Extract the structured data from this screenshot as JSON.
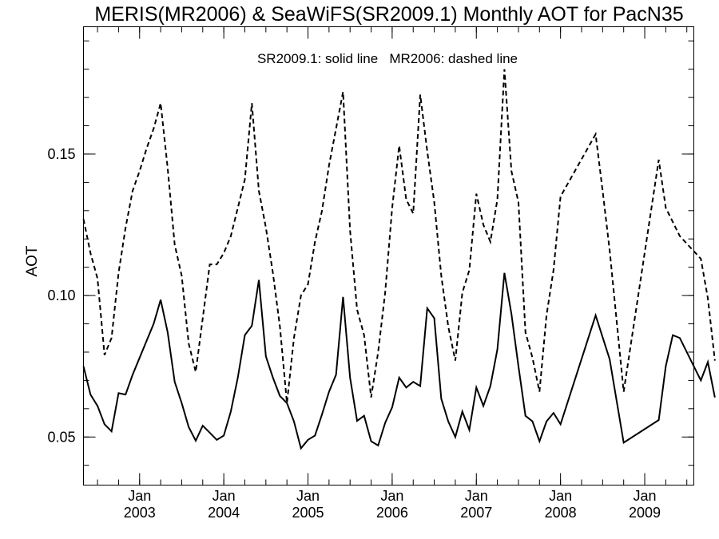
{
  "chart_data": {
    "type": "line",
    "title": "MERIS(MR2006) & SeaWiFS(SR2009.1) Monthly AOT for PacN35",
    "annotation": "SR2009.1: solid line   MR2006: dashed line",
    "xlabel": "",
    "ylabel": "AOT",
    "xlim": [
      "2002-05",
      "2009-08"
    ],
    "ylim": [
      0.033,
      0.195
    ],
    "y_ticks": [
      {
        "value": 0.05,
        "label": "0.05"
      },
      {
        "value": 0.1,
        "label": "0.10"
      },
      {
        "value": 0.15,
        "label": "0.15"
      }
    ],
    "x_ticks": [
      {
        "x": "2003-01",
        "month": "Jan",
        "year": "2003"
      },
      {
        "x": "2004-01",
        "month": "Jan",
        "year": "2004"
      },
      {
        "x": "2005-01",
        "month": "Jan",
        "year": "2005"
      },
      {
        "x": "2006-01",
        "month": "Jan",
        "year": "2006"
      },
      {
        "x": "2007-01",
        "month": "Jan",
        "year": "2007"
      },
      {
        "x": "2008-01",
        "month": "Jan",
        "year": "2008"
      },
      {
        "x": "2009-01",
        "month": "Jan",
        "year": "2009"
      }
    ],
    "grid": false,
    "series": [
      {
        "style": "solid",
        "points": [
          [
            "2002-05",
            0.075
          ],
          [
            "2002-06",
            0.065
          ],
          [
            "2002-07",
            0.061
          ],
          [
            "2002-08",
            0.0545
          ],
          [
            "2002-09",
            0.052
          ],
          [
            "2002-10",
            0.0655
          ],
          [
            "2002-11",
            0.065
          ],
          [
            "2002-12",
            0.072
          ],
          [
            "2003-01",
            0.078
          ],
          [
            "2003-02",
            0.084
          ],
          [
            "2003-03",
            0.09
          ],
          [
            "2003-04",
            0.0985
          ],
          [
            "2003-05",
            0.087
          ],
          [
            "2003-06",
            0.0695
          ],
          [
            "2003-07",
            0.062
          ],
          [
            "2003-08",
            0.0535
          ],
          [
            "2003-09",
            0.0487
          ],
          [
            "2003-10",
            0.054
          ],
          [
            "2003-11",
            0.0515
          ],
          [
            "2003-12",
            0.049
          ],
          [
            "2004-01",
            0.0505
          ],
          [
            "2004-02",
            0.059
          ],
          [
            "2004-03",
            0.071
          ],
          [
            "2004-04",
            0.086
          ],
          [
            "2004-05",
            0.0893
          ],
          [
            "2004-06",
            0.1055
          ],
          [
            "2004-07",
            0.0785
          ],
          [
            "2004-08",
            0.071
          ],
          [
            "2004-09",
            0.0645
          ],
          [
            "2004-10",
            0.062
          ],
          [
            "2004-11",
            0.0555
          ],
          [
            "2004-12",
            0.046
          ],
          [
            "2005-01",
            0.049
          ],
          [
            "2005-02",
            0.0505
          ],
          [
            "2005-03",
            0.058
          ],
          [
            "2005-04",
            0.066
          ],
          [
            "2005-05",
            0.072
          ],
          [
            "2005-06",
            0.0995
          ],
          [
            "2005-07",
            0.071
          ],
          [
            "2005-08",
            0.0557
          ],
          [
            "2005-09",
            0.0575
          ],
          [
            "2005-10",
            0.0485
          ],
          [
            "2005-11",
            0.047
          ],
          [
            "2005-12",
            0.055
          ],
          [
            "2006-01",
            0.0605
          ],
          [
            "2006-02",
            0.071
          ],
          [
            "2006-03",
            0.0675
          ],
          [
            "2006-04",
            0.0695
          ],
          [
            "2006-05",
            0.068
          ],
          [
            "2006-06",
            0.0955
          ],
          [
            "2006-07",
            0.092
          ],
          [
            "2006-08",
            0.0635
          ],
          [
            "2006-09",
            0.0555
          ],
          [
            "2006-10",
            0.05
          ],
          [
            "2006-11",
            0.059
          ],
          [
            "2006-12",
            0.0525
          ],
          [
            "2007-01",
            0.0675
          ],
          [
            "2007-02",
            0.061
          ],
          [
            "2007-03",
            0.068
          ],
          [
            "2007-04",
            0.081
          ],
          [
            "2007-05",
            0.108
          ],
          [
            "2007-06",
            0.0935
          ],
          [
            "2007-07",
            0.075
          ],
          [
            "2007-08",
            0.0575
          ],
          [
            "2007-09",
            0.0555
          ],
          [
            "2007-10",
            0.0485
          ],
          [
            "2007-11",
            0.0555
          ],
          [
            "2007-12",
            0.0585
          ],
          [
            "2008-01",
            0.0545
          ],
          [
            "2008-06",
            0.093
          ],
          [
            "2008-08",
            0.0775
          ],
          [
            "2008-10",
            0.048
          ],
          [
            "2009-03",
            0.056
          ],
          [
            "2009-04",
            0.075
          ],
          [
            "2009-05",
            0.086
          ],
          [
            "2009-06",
            0.085
          ],
          [
            "2009-09",
            0.07
          ],
          [
            "2009-10",
            0.0765
          ],
          [
            "2009-11",
            0.064
          ]
        ]
      },
      {
        "style": "dashed",
        "points": [
          [
            "2002-05",
            0.127
          ],
          [
            "2002-06",
            0.115
          ],
          [
            "2002-07",
            0.106
          ],
          [
            "2002-08",
            0.079
          ],
          [
            "2002-09",
            0.085
          ],
          [
            "2002-10",
            0.108
          ],
          [
            "2002-11",
            0.124
          ],
          [
            "2002-12",
            0.137
          ],
          [
            "2003-01",
            0.144
          ],
          [
            "2003-02",
            0.152
          ],
          [
            "2003-03",
            0.159
          ],
          [
            "2003-04",
            0.168
          ],
          [
            "2003-05",
            0.145
          ],
          [
            "2003-06",
            0.118
          ],
          [
            "2003-07",
            0.107
          ],
          [
            "2003-08",
            0.083
          ],
          [
            "2003-09",
            0.073
          ],
          [
            "2003-10",
            0.092
          ],
          [
            "2003-11",
            0.111
          ],
          [
            "2003-12",
            0.111
          ],
          [
            "2004-01",
            0.115
          ],
          [
            "2004-02",
            0.121
          ],
          [
            "2004-03",
            0.131
          ],
          [
            "2004-04",
            0.141
          ],
          [
            "2004-05",
            0.168
          ],
          [
            "2004-06",
            0.137
          ],
          [
            "2004-07",
            0.124
          ],
          [
            "2004-08",
            0.108
          ],
          [
            "2004-09",
            0.089
          ],
          [
            "2004-10",
            0.062
          ],
          [
            "2004-11",
            0.085
          ],
          [
            "2004-12",
            0.1
          ],
          [
            "2005-01",
            0.104
          ],
          [
            "2005-02",
            0.119
          ],
          [
            "2005-03",
            0.13
          ],
          [
            "2005-04",
            0.146
          ],
          [
            "2005-05",
            0.159
          ],
          [
            "2005-06",
            0.172
          ],
          [
            "2005-07",
            0.123
          ],
          [
            "2005-08",
            0.095
          ],
          [
            "2005-09",
            0.086
          ],
          [
            "2005-10",
            0.064
          ],
          [
            "2005-11",
            0.08
          ],
          [
            "2005-12",
            0.101
          ],
          [
            "2006-01",
            0.131
          ],
          [
            "2006-02",
            0.153
          ],
          [
            "2006-03",
            0.134
          ],
          [
            "2006-04",
            0.129
          ],
          [
            "2006-05",
            0.171
          ],
          [
            "2006-06",
            0.151
          ],
          [
            "2006-07",
            0.133
          ],
          [
            "2006-08",
            0.107
          ],
          [
            "2006-09",
            0.089
          ],
          [
            "2006-10",
            0.077
          ],
          [
            "2006-11",
            0.101
          ],
          [
            "2006-12",
            0.109
          ],
          [
            "2007-01",
            0.136
          ],
          [
            "2007-02",
            0.125
          ],
          [
            "2007-03",
            0.119
          ],
          [
            "2007-04",
            0.134
          ],
          [
            "2007-05",
            0.18
          ],
          [
            "2007-06",
            0.144
          ],
          [
            "2007-07",
            0.133
          ],
          [
            "2007-08",
            0.087
          ],
          [
            "2007-09",
            0.078
          ],
          [
            "2007-10",
            0.066
          ],
          [
            "2007-11",
            0.093
          ],
          [
            "2007-12",
            0.109
          ],
          [
            "2008-01",
            0.135
          ],
          [
            "2008-06",
            0.157
          ],
          [
            "2008-07",
            0.137
          ],
          [
            "2008-08",
            0.116
          ],
          [
            "2008-10",
            0.066
          ],
          [
            "2009-03",
            0.148
          ],
          [
            "2009-04",
            0.131
          ],
          [
            "2009-05",
            0.126
          ],
          [
            "2009-06",
            0.121
          ],
          [
            "2009-09",
            0.113
          ],
          [
            "2009-10",
            0.099
          ],
          [
            "2009-11",
            0.077
          ]
        ]
      }
    ]
  }
}
